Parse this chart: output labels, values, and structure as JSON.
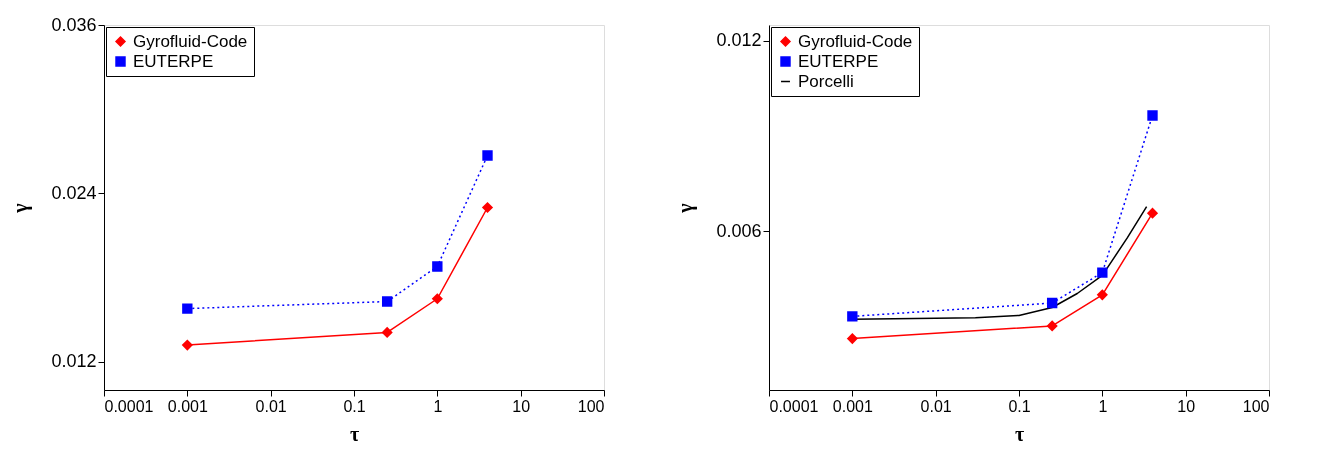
{
  "chart_data": [
    {
      "type": "line",
      "xlabel": "τ",
      "ylabel": "γ",
      "log": "x",
      "xlim": [
        0.0001,
        100
      ],
      "xticks": [
        0.0001,
        0.001,
        0.01,
        0.1,
        1,
        10,
        100
      ],
      "ylim": [
        0.01,
        0.036
      ],
      "yticks": [
        0.012,
        0.024,
        0.036
      ],
      "grid": false,
      "legend": "top left",
      "series": [
        {
          "name": "Gyrofluid-Code",
          "color": "#ff0000",
          "marker": "diamond",
          "line_style": "solid",
          "x": [
            0.001,
            0.25,
            1,
            4
          ],
          "values": [
            0.0132,
            0.0141,
            0.0165,
            0.023
          ]
        },
        {
          "name": "EUTERPE",
          "color": "#0000ff",
          "marker": "square",
          "line_style": "dotted",
          "x": [
            0.001,
            0.25,
            1,
            4
          ],
          "values": [
            0.0158,
            0.0163,
            0.0188,
            0.0267
          ]
        }
      ]
    },
    {
      "type": "line",
      "xlabel": "τ",
      "ylabel": "γ",
      "log": "x",
      "xlim": [
        0.0001,
        100
      ],
      "xticks": [
        0.0001,
        0.001,
        0.01,
        0.1,
        1,
        10,
        100
      ],
      "ylim": [
        0.001,
        0.0125
      ],
      "yticks": [
        0.006,
        0.012
      ],
      "grid": false,
      "legend": "top left",
      "series": [
        {
          "name": "Gyrofluid-Code",
          "color": "#ff0000",
          "marker": "diamond",
          "line_style": "solid",
          "x": [
            0.001,
            0.25,
            1,
            4
          ],
          "values": [
            0.00262,
            0.00302,
            0.004,
            0.00657
          ]
        },
        {
          "name": "EUTERPE",
          "color": "#0000ff",
          "marker": "square",
          "line_style": "dotted",
          "x": [
            0.001,
            0.25,
            1,
            4
          ],
          "values": [
            0.00332,
            0.00374,
            0.0047,
            0.00965
          ]
        },
        {
          "name": "Porcelli",
          "color": "#000000",
          "marker": "none",
          "line_style": "solid",
          "x": [
            0.001,
            0.01,
            0.03,
            0.1,
            0.25,
            0.5,
            1,
            2,
            3.4
          ],
          "values": [
            0.00323,
            0.00326,
            0.00328,
            0.00335,
            0.0036,
            0.00404,
            0.00461,
            0.0058,
            0.00678
          ]
        }
      ]
    }
  ]
}
